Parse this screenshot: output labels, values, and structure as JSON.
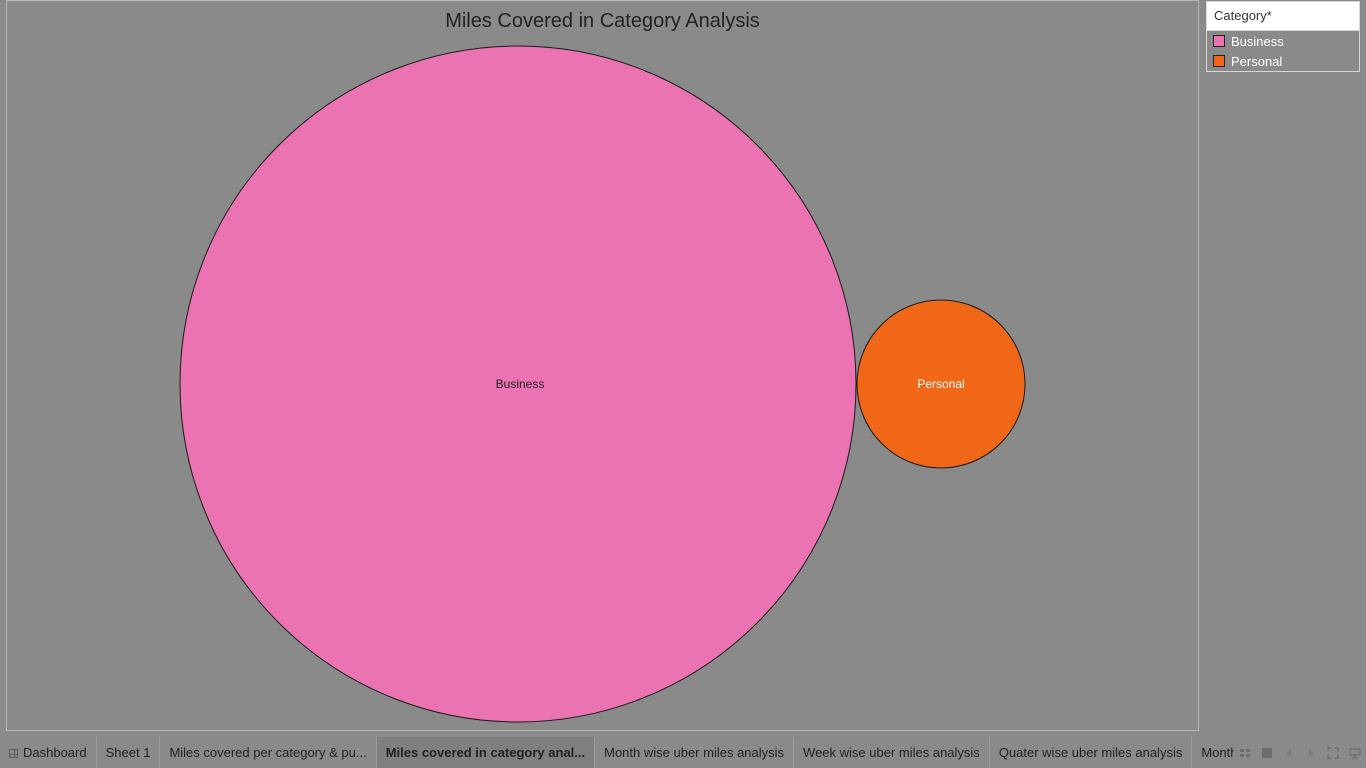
{
  "viz": {
    "title": "Miles Covered in Category Analysis"
  },
  "legend": {
    "title": "Category*",
    "items": [
      {
        "label": "Business",
        "color": "#ec73b2"
      },
      {
        "label": "Personal",
        "color": "#f06717"
      }
    ]
  },
  "chart_data": {
    "type": "bubble",
    "categories": [
      "Business",
      "Personal"
    ],
    "relative_size": [
      1.0,
      0.0625
    ],
    "colors": [
      "#ec73b2",
      "#f06717"
    ],
    "label_colors": [
      "#222222",
      "#ffffff"
    ]
  },
  "tabs": [
    {
      "label": "Dashboard",
      "icon": "dashboard-grid-icon",
      "active": false
    },
    {
      "label": "Sheet 1",
      "active": false
    },
    {
      "label": "Miles covered per category & pu...",
      "active": false
    },
    {
      "label": "Miles covered in category anal...",
      "active": true
    },
    {
      "label": "Month wise uber miles analysis",
      "active": false
    },
    {
      "label": "Week wise uber miles analysis",
      "active": false
    },
    {
      "label": "Quater wise uber miles analysis",
      "active": false
    },
    {
      "label": "Month wise uber",
      "active": false
    }
  ],
  "controls": {
    "icons": [
      "show-sheet-sorter-icon",
      "show-tabs-icon",
      "prev-sheet-icon",
      "next-sheet-icon",
      "fullscreen-icon",
      "presentation-mode-icon"
    ]
  }
}
